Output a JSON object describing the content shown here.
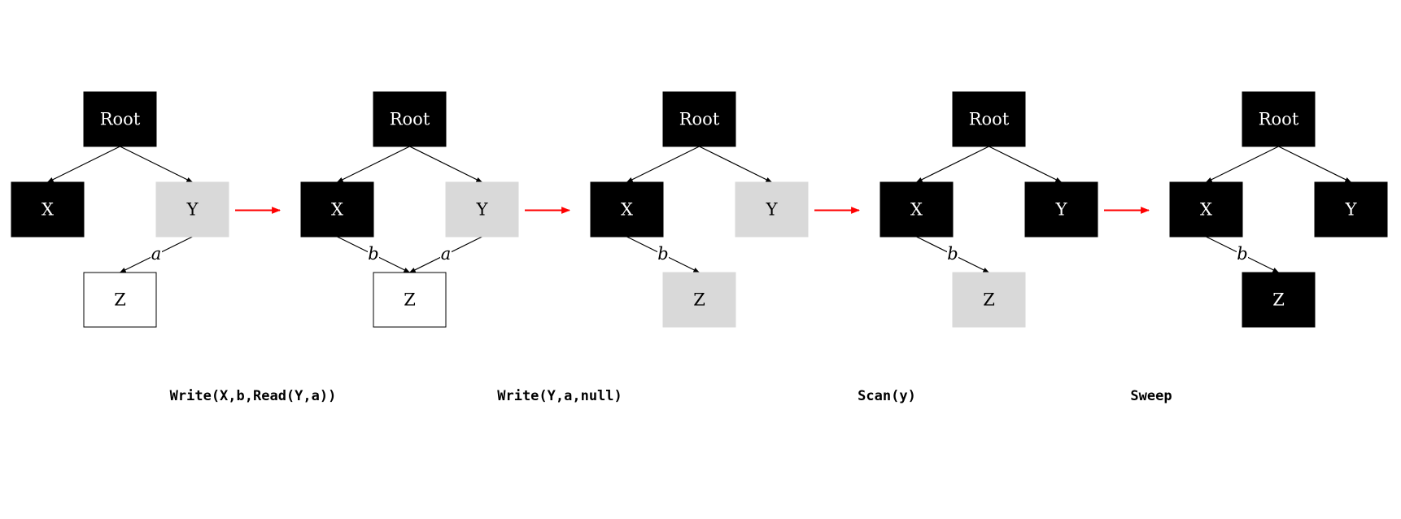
{
  "colors": {
    "black": "#000000",
    "grey": "#d9d9d9",
    "white": "#ffffff",
    "transition_arrow": "#ff0000"
  },
  "panels": [
    {
      "nodes": [
        {
          "id": "root",
          "label": "Root",
          "color": "black"
        },
        {
          "id": "x",
          "label": "X",
          "color": "black"
        },
        {
          "id": "y",
          "label": "Y",
          "color": "grey"
        },
        {
          "id": "z",
          "label": "Z",
          "color": "white"
        }
      ],
      "edges": [
        {
          "from": "root",
          "to": "x",
          "label": ""
        },
        {
          "from": "root",
          "to": "y",
          "label": ""
        },
        {
          "from": "y",
          "to": "z",
          "label": "a"
        }
      ]
    },
    {
      "nodes": [
        {
          "id": "root",
          "label": "Root",
          "color": "black"
        },
        {
          "id": "x",
          "label": "X",
          "color": "black"
        },
        {
          "id": "y",
          "label": "Y",
          "color": "grey"
        },
        {
          "id": "z",
          "label": "Z",
          "color": "white"
        }
      ],
      "edges": [
        {
          "from": "root",
          "to": "x",
          "label": ""
        },
        {
          "from": "root",
          "to": "y",
          "label": ""
        },
        {
          "from": "x",
          "to": "z",
          "label": "b"
        },
        {
          "from": "y",
          "to": "z",
          "label": "a"
        }
      ]
    },
    {
      "nodes": [
        {
          "id": "root",
          "label": "Root",
          "color": "black"
        },
        {
          "id": "x",
          "label": "X",
          "color": "black"
        },
        {
          "id": "y",
          "label": "Y",
          "color": "grey"
        },
        {
          "id": "z",
          "label": "Z",
          "color": "grey"
        }
      ],
      "edges": [
        {
          "from": "root",
          "to": "x",
          "label": ""
        },
        {
          "from": "root",
          "to": "y",
          "label": ""
        },
        {
          "from": "x",
          "to": "z",
          "label": "b"
        }
      ]
    },
    {
      "nodes": [
        {
          "id": "root",
          "label": "Root",
          "color": "black"
        },
        {
          "id": "x",
          "label": "X",
          "color": "black"
        },
        {
          "id": "y",
          "label": "Y",
          "color": "black"
        },
        {
          "id": "z",
          "label": "Z",
          "color": "grey"
        }
      ],
      "edges": [
        {
          "from": "root",
          "to": "x",
          "label": ""
        },
        {
          "from": "root",
          "to": "y",
          "label": ""
        },
        {
          "from": "x",
          "to": "z",
          "label": "b"
        }
      ]
    },
    {
      "nodes": [
        {
          "id": "root",
          "label": "Root",
          "color": "black"
        },
        {
          "id": "x",
          "label": "X",
          "color": "black"
        },
        {
          "id": "y",
          "label": "Y",
          "color": "black"
        },
        {
          "id": "z",
          "label": "Z",
          "color": "black"
        }
      ],
      "edges": [
        {
          "from": "root",
          "to": "x",
          "label": ""
        },
        {
          "from": "root",
          "to": "y",
          "label": ""
        },
        {
          "from": "x",
          "to": "z",
          "label": "b"
        }
      ]
    }
  ],
  "steps": [
    {
      "label": "Write(X,b,Read(Y,a))"
    },
    {
      "label": "Write(Y,a,null)"
    },
    {
      "label": "Scan(y)"
    },
    {
      "label": "Sweep"
    }
  ]
}
